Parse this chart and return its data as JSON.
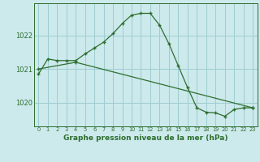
{
  "title": "Graphe pression niveau de la mer (hPa)",
  "bg_color": "#cce9ec",
  "grid_color": "#9ecdd1",
  "line_color": "#2d6e2d",
  "xlim": [
    -0.5,
    23.5
  ],
  "ylim": [
    1019.3,
    1022.95
  ],
  "yticks": [
    1020,
    1021,
    1022
  ],
  "xticks": [
    0,
    1,
    2,
    3,
    4,
    5,
    6,
    7,
    8,
    9,
    10,
    11,
    12,
    13,
    14,
    15,
    16,
    17,
    18,
    19,
    20,
    21,
    22,
    23
  ],
  "series1_x": [
    0,
    1,
    2,
    3,
    4,
    5,
    6,
    7,
    8,
    9,
    10,
    11,
    12,
    13,
    14,
    15,
    16,
    17,
    18,
    19,
    20,
    21,
    22,
    23
  ],
  "series1_y": [
    1020.85,
    1021.3,
    1021.25,
    1021.25,
    1021.25,
    1021.45,
    1021.62,
    1021.8,
    1022.05,
    1022.35,
    1022.6,
    1022.65,
    1022.65,
    1022.3,
    1021.75,
    1021.1,
    1020.45,
    1019.85,
    1019.72,
    1019.7,
    1019.6,
    1019.8,
    1019.85,
    1019.85
  ],
  "series2_x": [
    0,
    4,
    23
  ],
  "series2_y": [
    1021.0,
    1021.2,
    1019.85
  ]
}
